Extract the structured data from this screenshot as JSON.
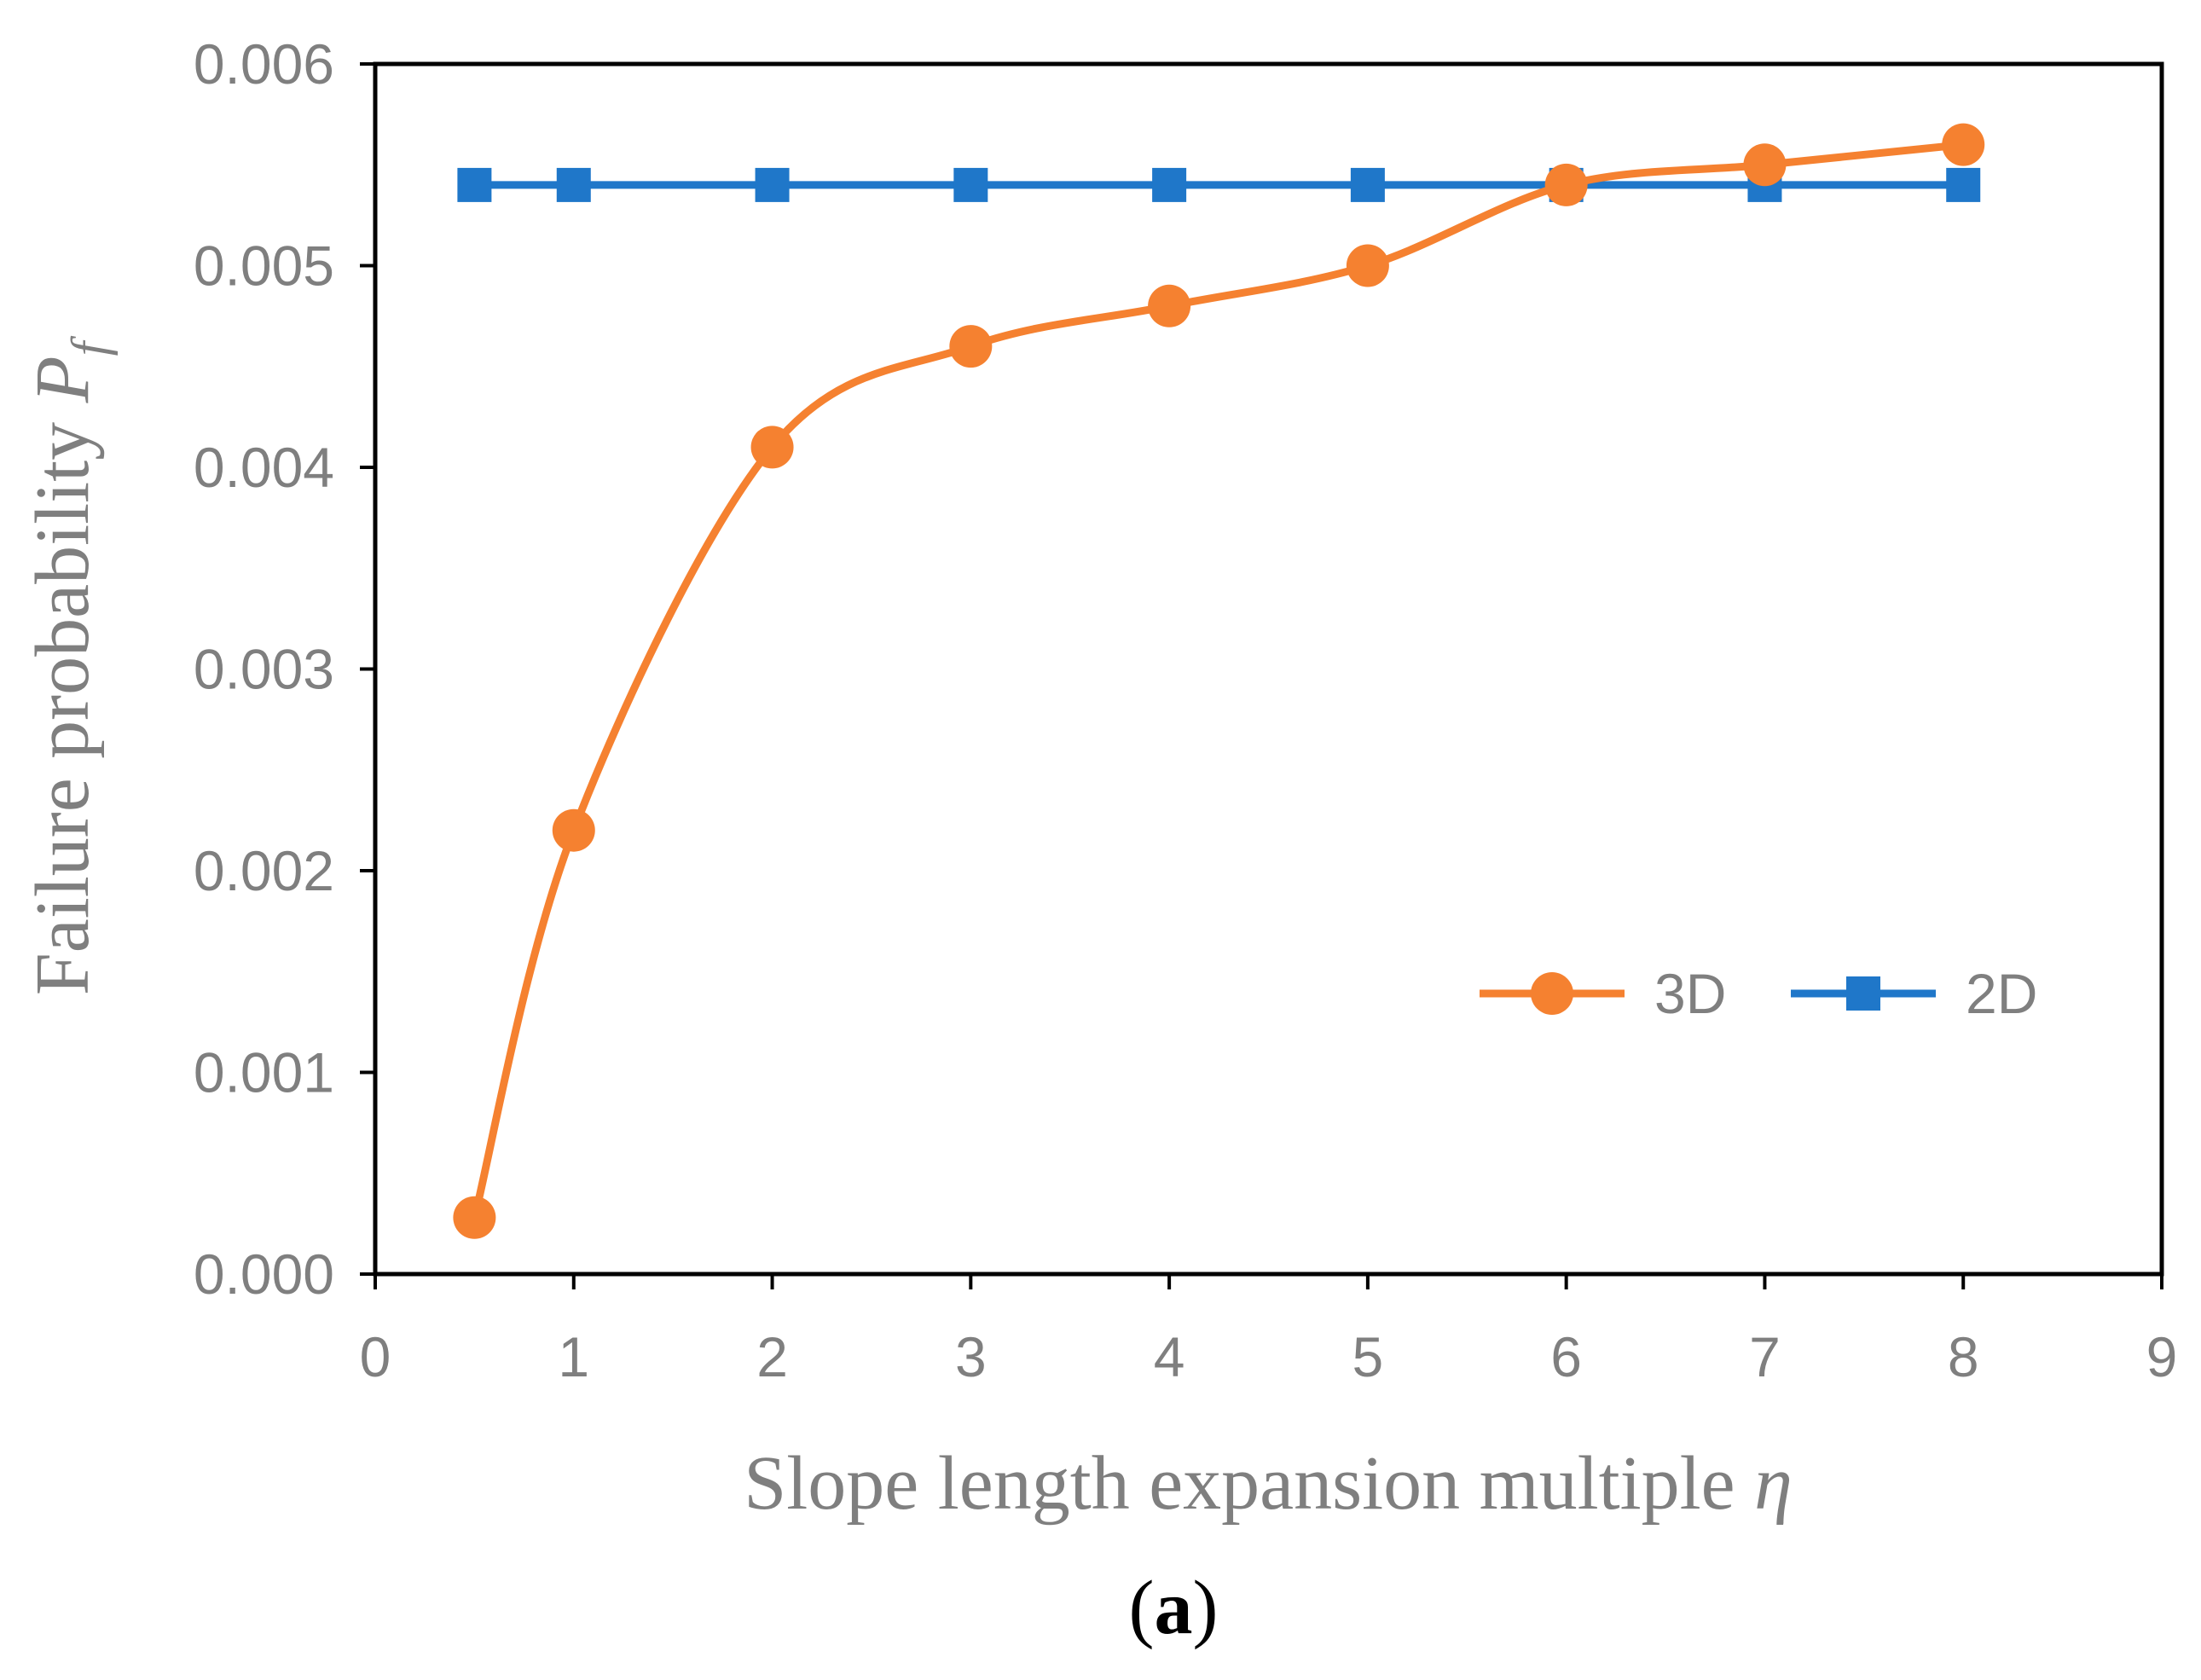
{
  "chart_data": {
    "type": "line",
    "title": "",
    "subcaption": {
      "open": "(",
      "letter": "a",
      "close": ")"
    },
    "xlabel": {
      "text": "Slope length expansion multiple ",
      "symbol": "η"
    },
    "ylabel": {
      "text": "Failure probability ",
      "symbol": "P",
      "subscript": "f"
    },
    "xlim": [
      0,
      9
    ],
    "ylim": [
      0,
      0.006
    ],
    "xticks": [
      "0",
      "1",
      "2",
      "3",
      "4",
      "5",
      "6",
      "7",
      "8",
      "9"
    ],
    "yticks": [
      "0.000",
      "0.001",
      "0.002",
      "0.003",
      "0.004",
      "0.005",
      "0.006"
    ],
    "grid": false,
    "legend_position": "right, lower middle",
    "series": [
      {
        "name": "3D",
        "marker": "circle",
        "color": "#f58130",
        "smooth": true,
        "x": [
          0.5,
          1,
          2,
          3,
          4,
          5,
          6,
          7,
          8
        ],
        "y": [
          0.00028,
          0.0022,
          0.0041,
          0.0046,
          0.0048,
          0.005,
          0.0054,
          0.0055,
          0.0056
        ]
      },
      {
        "name": "2D",
        "marker": "square",
        "color": "#1f77c9",
        "smooth": false,
        "x": [
          0.5,
          1,
          2,
          3,
          4,
          5,
          6,
          7,
          8
        ],
        "y": [
          0.0054,
          0.0054,
          0.0054,
          0.0054,
          0.0054,
          0.0054,
          0.0054,
          0.0054,
          0.0054
        ]
      }
    ]
  }
}
